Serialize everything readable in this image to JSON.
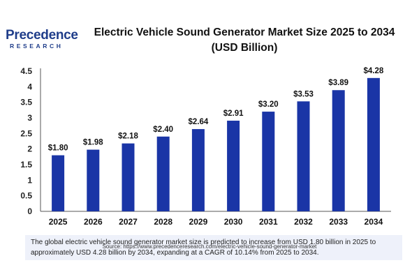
{
  "brand": {
    "name": "Precedence",
    "sub": "RESEARCH"
  },
  "title_line1": "Electric Vehicle Sound Generator Market Size 2025 to 2034",
  "title_line2": "(USD Billion)",
  "description": "The global electric vehicle sound generator market size is predicted to increase from USD 1.80 billion in 2025 to approximately USD 4.28 billion by 2034, expanding at a CAGR of 10.14% from 2025 to 2034.",
  "source": "Source: https://www.precedenceresearch.com/electric-vehicle-sound-generator-market",
  "colors": {
    "bar": "#1a35a6",
    "brand": "#1f3d8a"
  },
  "chart_data": {
    "type": "bar",
    "title": "Electric Vehicle Sound Generator Market Size 2025 to 2034 (USD Billion)",
    "categories": [
      "2025",
      "2026",
      "2027",
      "2028",
      "2029",
      "2030",
      "2031",
      "2032",
      "2033",
      "2034"
    ],
    "values": [
      1.8,
      1.98,
      2.18,
      2.4,
      2.64,
      2.91,
      3.2,
      3.53,
      3.89,
      4.28
    ],
    "data_labels": [
      "$1.80",
      "$1.98",
      "$2.18",
      "$2.40",
      "$2.64",
      "$2.91",
      "$3.20",
      "$3.53",
      "$3.89",
      "$4.28"
    ],
    "yticks": [
      "0",
      "0.5",
      "1",
      "1.5",
      "2",
      "2.5",
      "3",
      "3.5",
      "4",
      "4.5"
    ],
    "ylim": [
      0,
      4.5
    ],
    "xlabel": "",
    "ylabel": "",
    "grid": false,
    "legend": "none"
  }
}
